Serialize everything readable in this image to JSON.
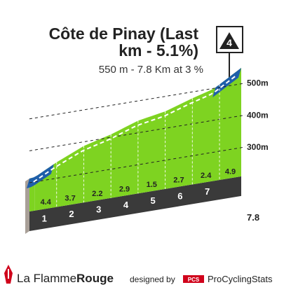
{
  "title_line1": "Côte de Pinay (Last",
  "title_line2": "km - 5.1%)",
  "subtitle": "550 m - 7.8 Km at 3 %",
  "category_badge": "4",
  "total_distance_label": "7.8",
  "brand": {
    "part1": "La Flamme",
    "part2": "Rouge",
    "designed_by": "designed by",
    "pcs_box": "PCS",
    "pcs_name": "ProCyclingStats"
  },
  "colors": {
    "green": "#7ed321",
    "blue": "#1f5faa",
    "dark": "#3a3a3a",
    "side": "#a89f97",
    "brand_red": "#d0021b"
  },
  "chart_data": {
    "type": "area",
    "title": "Côte de Pinay (Last km - 5.1%)",
    "subtitle": "550 m - 7.8 Km at 3 %",
    "y_ticks": [
      {
        "value": 300,
        "label": "300m"
      },
      {
        "value": 400,
        "label": "400m"
      },
      {
        "value": 500,
        "label": "500m"
      }
    ],
    "ylim": [
      210,
      550
    ],
    "xlim": [
      0,
      7.8
    ],
    "km_markers": [
      "1",
      "2",
      "3",
      "4",
      "5",
      "6",
      "7"
    ],
    "segments": [
      {
        "km_start": 0.0,
        "km_end": 0.2,
        "grade": null
      },
      {
        "km_start": 0.2,
        "km_end": 1.0,
        "grade": 4.4,
        "grade_label": "4.4"
      },
      {
        "km_start": 1.0,
        "km_end": 2.0,
        "grade": 3.7,
        "grade_label": "3.7"
      },
      {
        "km_start": 2.0,
        "km_end": 3.0,
        "grade": 2.2,
        "grade_label": "2.2"
      },
      {
        "km_start": 3.0,
        "km_end": 4.0,
        "grade": 2.9,
        "grade_label": "2.9"
      },
      {
        "km_start": 4.0,
        "km_end": 5.0,
        "grade": 1.5,
        "grade_label": "1.5"
      },
      {
        "km_start": 5.0,
        "km_end": 6.0,
        "grade": 2.7,
        "grade_label": "2.7"
      },
      {
        "km_start": 6.0,
        "km_end": 7.0,
        "grade": 2.4,
        "grade_label": "2.4"
      },
      {
        "km_start": 7.0,
        "km_end": 7.8,
        "grade": 4.9,
        "grade_label": "4.9"
      }
    ],
    "profile": [
      {
        "km": 0.0,
        "elev": 313
      },
      {
        "km": 0.2,
        "elev": 315
      },
      {
        "km": 1.0,
        "elev": 350
      },
      {
        "km": 2.0,
        "elev": 387
      },
      {
        "km": 3.0,
        "elev": 409
      },
      {
        "km": 4.0,
        "elev": 438
      },
      {
        "km": 5.0,
        "elev": 453
      },
      {
        "km": 6.0,
        "elev": 480
      },
      {
        "km": 6.8,
        "elev": 499
      },
      {
        "km": 7.8,
        "elev": 550
      }
    ]
  }
}
